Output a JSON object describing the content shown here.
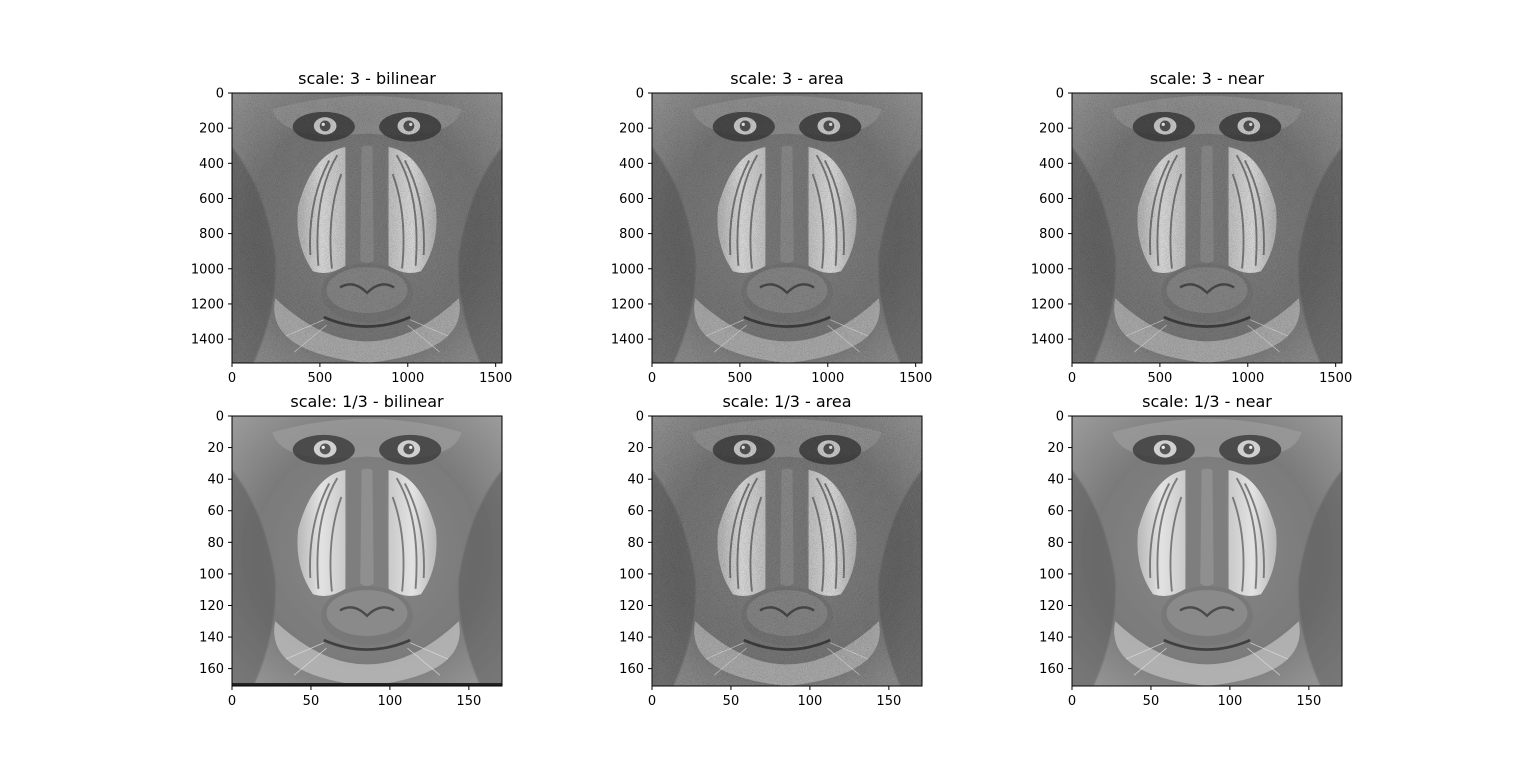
{
  "figure": {
    "panels": [
      {
        "title": "scale: 3 - bilinear"
      },
      {
        "title": "scale: 3 - area"
      },
      {
        "title": "scale: 3 - near"
      },
      {
        "title": "scale: 1/3 - bilinear"
      },
      {
        "title": "scale: 1/3 - area"
      },
      {
        "title": "scale: 1/3 - near"
      }
    ]
  },
  "chart_data": [
    {
      "type": "heatmap",
      "title": "scale: 3 - bilinear",
      "image_content": "grayscale mandrill (baboon) face photograph",
      "xlim": [
        0,
        1536
      ],
      "ylim": [
        1536,
        0
      ],
      "xticks": [
        0,
        500,
        1000,
        1500
      ],
      "yticks": [
        0,
        200,
        400,
        600,
        800,
        1000,
        1200,
        1400
      ],
      "interpolation": "bilinear",
      "scale": "3"
    },
    {
      "type": "heatmap",
      "title": "scale: 3 - area",
      "image_content": "grayscale mandrill (baboon) face photograph",
      "xlim": [
        0,
        1536
      ],
      "ylim": [
        1536,
        0
      ],
      "xticks": [
        0,
        500,
        1000,
        1500
      ],
      "yticks": [
        0,
        200,
        400,
        600,
        800,
        1000,
        1200,
        1400
      ],
      "interpolation": "area",
      "scale": "3"
    },
    {
      "type": "heatmap",
      "title": "scale: 3 - near",
      "image_content": "grayscale mandrill (baboon) face photograph",
      "xlim": [
        0,
        1536
      ],
      "ylim": [
        1536,
        0
      ],
      "xticks": [
        0,
        500,
        1000,
        1500
      ],
      "yticks": [
        0,
        200,
        400,
        600,
        800,
        1000,
        1200,
        1400
      ],
      "interpolation": "near",
      "scale": "3"
    },
    {
      "type": "heatmap",
      "title": "scale: 1/3 - bilinear",
      "image_content": "grayscale mandrill (baboon) face photograph",
      "xlim": [
        0,
        171
      ],
      "ylim": [
        171,
        0
      ],
      "xticks": [
        0,
        50,
        100,
        150
      ],
      "yticks": [
        0,
        20,
        40,
        60,
        80,
        100,
        120,
        140,
        160
      ],
      "interpolation": "bilinear",
      "scale": "1/3"
    },
    {
      "type": "heatmap",
      "title": "scale: 1/3 - area",
      "image_content": "grayscale mandrill (baboon) face photograph",
      "xlim": [
        0,
        171
      ],
      "ylim": [
        171,
        0
      ],
      "xticks": [
        0,
        50,
        100,
        150
      ],
      "yticks": [
        0,
        20,
        40,
        60,
        80,
        100,
        120,
        140,
        160
      ],
      "interpolation": "area",
      "scale": "1/3"
    },
    {
      "type": "heatmap",
      "title": "scale: 1/3 - near",
      "image_content": "grayscale mandrill (baboon) face photograph",
      "xlim": [
        0,
        171
      ],
      "ylim": [
        171,
        0
      ],
      "xticks": [
        0,
        50,
        100,
        150
      ],
      "yticks": [
        0,
        20,
        40,
        60,
        80,
        100,
        120,
        140,
        160
      ],
      "interpolation": "near",
      "scale": "1/3"
    }
  ]
}
